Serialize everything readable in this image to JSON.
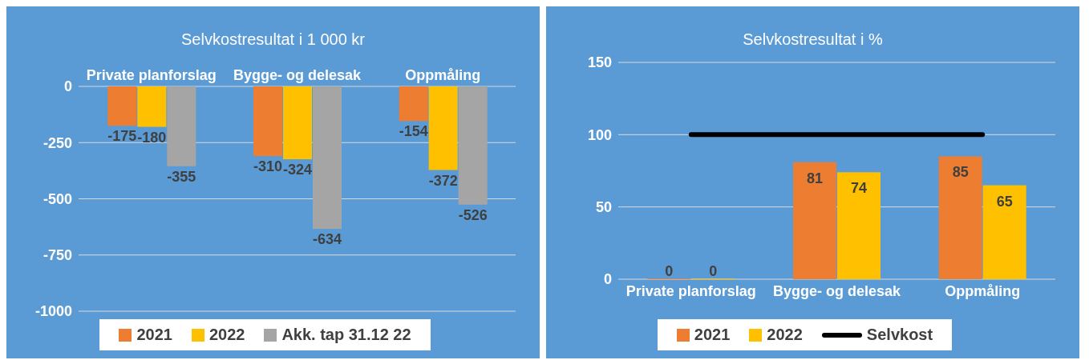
{
  "chart_data": [
    {
      "type": "bar",
      "title": "Selvkostresultat i 1 000 kr",
      "categories": [
        "Private planforslag",
        "Bygge- og delesak",
        "Oppmåling"
      ],
      "series": [
        {
          "name": "2021",
          "color": "#ed7d31",
          "values": [
            -175,
            -310,
            -154
          ],
          "value_labels": [
            "-175",
            "-310",
            "-154"
          ]
        },
        {
          "name": "2022",
          "color": "#ffc000",
          "values": [
            -180,
            -324,
            -372
          ],
          "value_labels": [
            "-180",
            "-324",
            "-372"
          ]
        },
        {
          "name": "Akk. tap 31.12 22",
          "color": "#a5a5a5",
          "values": [
            -355,
            -634,
            -526
          ],
          "value_labels": [
            "-355",
            "-634",
            "-526"
          ]
        }
      ],
      "ylim": [
        -1000,
        0
      ],
      "yticks": [
        -1000,
        -750,
        -500,
        -250,
        0
      ],
      "grid": "y",
      "legend": "bottom"
    },
    {
      "type": "bar",
      "title": "Selvkostresultat i %",
      "categories": [
        "Private planforslag",
        "Bygge- og delesak",
        "Oppmåling"
      ],
      "series": [
        {
          "name": "2021",
          "color": "#ed7d31",
          "values": [
            0,
            81,
            85
          ],
          "value_labels": [
            "0",
            "81",
            "85"
          ]
        },
        {
          "name": "2022",
          "color": "#ffc000",
          "values": [
            0,
            74,
            65
          ],
          "value_labels": [
            "0",
            "74",
            "65"
          ]
        },
        {
          "name": "Selvkost",
          "type": "line",
          "color": "#000000",
          "values": [
            100,
            100,
            100
          ]
        }
      ],
      "ylim": [
        0,
        150
      ],
      "yticks": [
        0,
        50,
        100,
        150
      ],
      "grid": "y",
      "legend": "bottom"
    }
  ]
}
